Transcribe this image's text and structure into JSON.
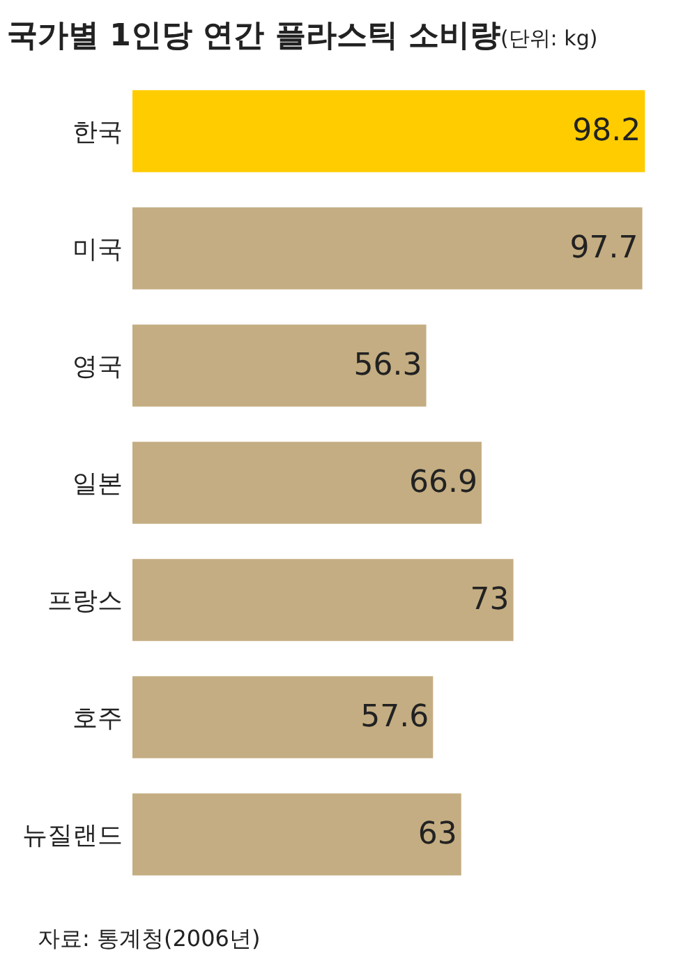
{
  "chart_data": {
    "type": "bar",
    "orientation": "horizontal",
    "title": "국가별 1인당 연간 플라스틱 소비량",
    "subtitle": "(단위: kg)",
    "categories": [
      "한국",
      "미국",
      "영국",
      "일본",
      "프랑스",
      "호주",
      "뉴질랜드"
    ],
    "values": [
      98.2,
      97.7,
      56.3,
      66.9,
      73,
      57.6,
      63
    ],
    "colors": [
      "#ffcc00",
      "#c4ad82",
      "#c4ad82",
      "#c4ad82",
      "#c4ad82",
      "#c4ad82",
      "#c4ad82"
    ],
    "data_labels": true,
    "annotations": [
      "자료: 통계청(2006년)"
    ]
  }
}
